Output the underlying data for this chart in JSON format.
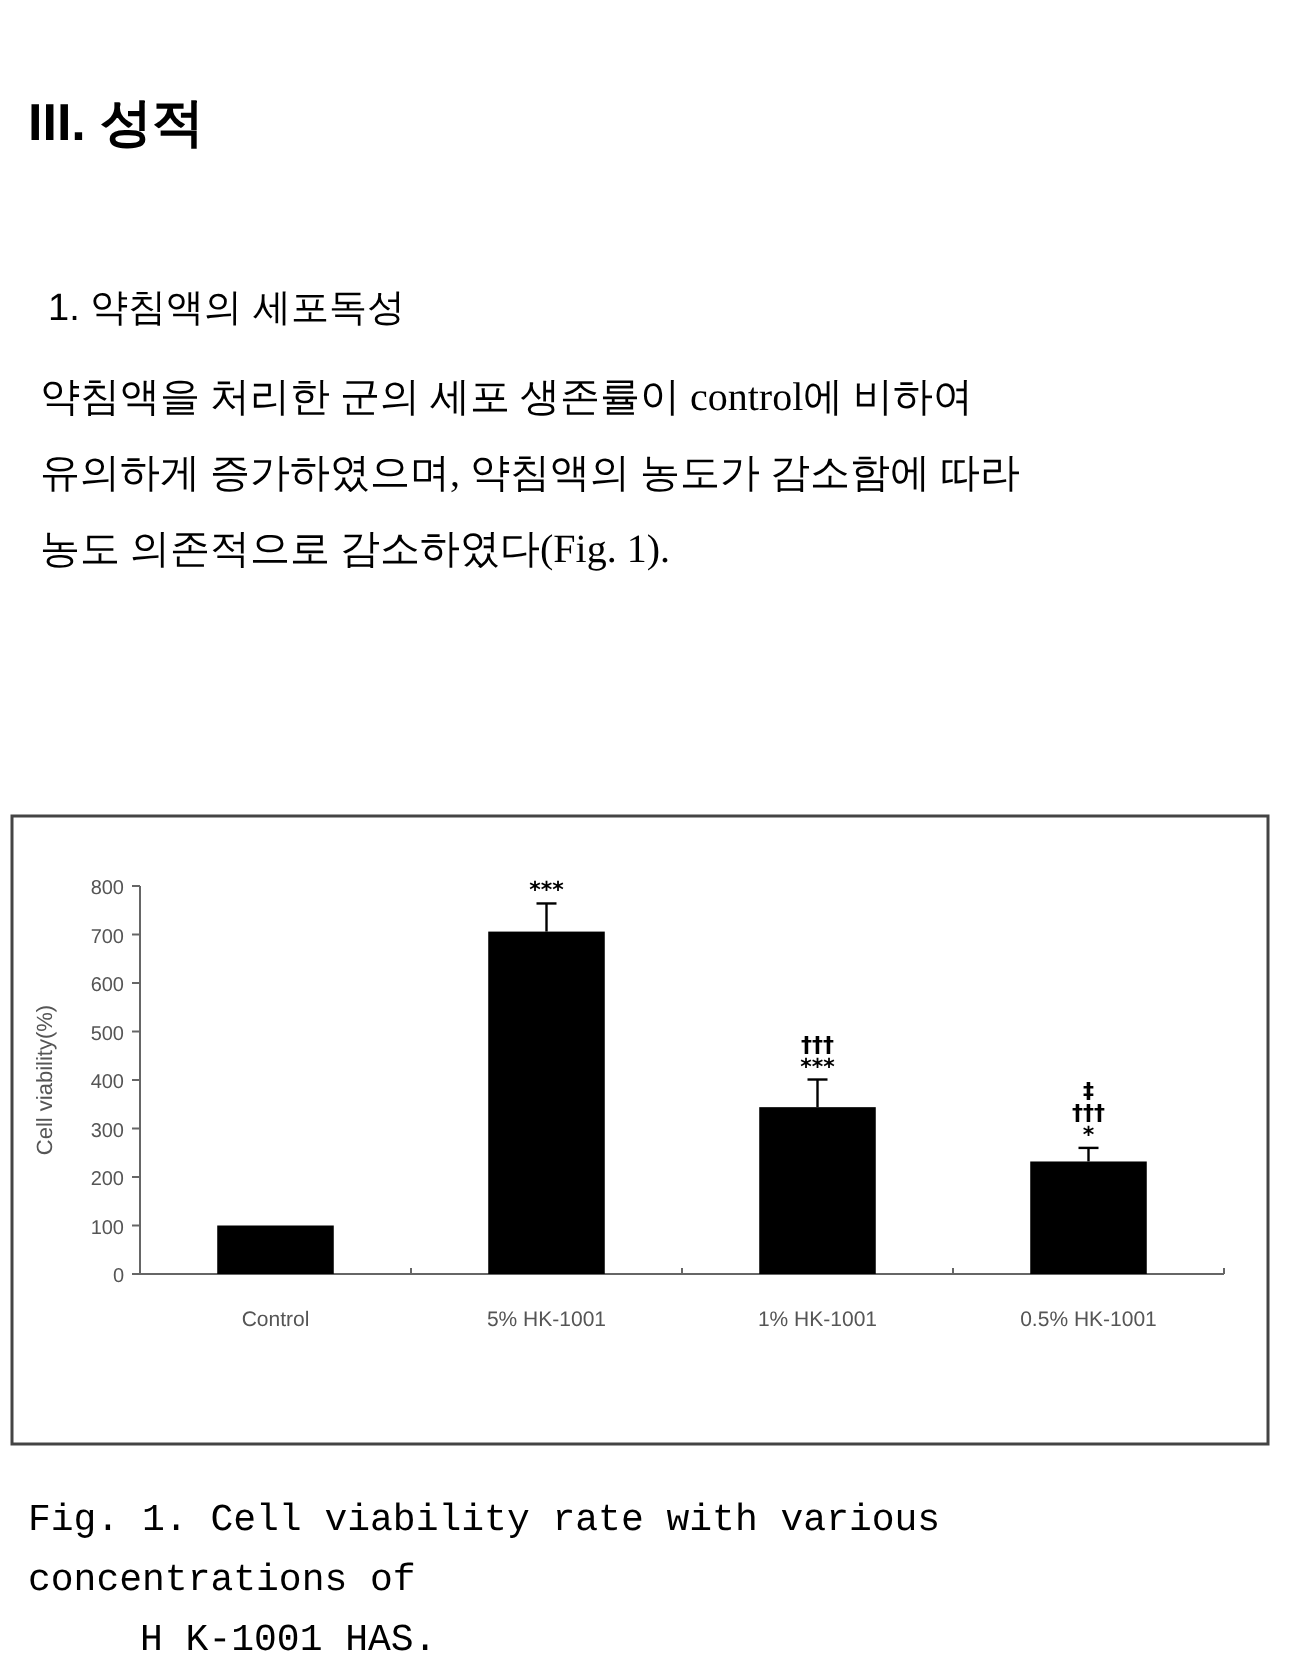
{
  "chart_data": {
    "type": "bar",
    "title": "III. 성적",
    "subtitle": "1. 약침액의 세포독성",
    "ylabel": "Cell viability(%)",
    "categories": [
      "Control",
      "5% HK-1001",
      "1% HK-1001",
      "0.5% HK-1001"
    ],
    "values": [
      100,
      706,
      344,
      232
    ],
    "errors": [
      null,
      58,
      57,
      28
    ],
    "color": "#000000",
    "ylim": [
      0,
      800
    ],
    "yticks": [
      0,
      100,
      200,
      300,
      400,
      500,
      600,
      700,
      800
    ],
    "grid": false,
    "annotations": [
      "약침액을 처리한 군의 세포 생존률이 control에 비하여",
      "유의하게 증가하였으며, 약침액의 농도가 감소함에 따라",
      "농도 의존적으로 감소하였다(Fig. 1).",
      "Fig. 1.  Cell viability rate with various",
      "concentrations of",
      "H K-1001 HAS.",
      {
        "text": "***",
        "x": "5% HK-1001",
        "y": 706
      },
      {
        "text": "***",
        "x": "1% HK-1001",
        "y": 344
      },
      {
        "text": "†††",
        "x": "1% HK-1001",
        "y": 344
      },
      {
        "text": "*",
        "x": "0.5% HK-1001",
        "y": 232
      },
      {
        "text": "†††",
        "x": "0.5% HK-1001",
        "y": 232
      },
      {
        "text": "‡",
        "x": "0.5% HK-1001",
        "y": 232
      }
    ]
  }
}
